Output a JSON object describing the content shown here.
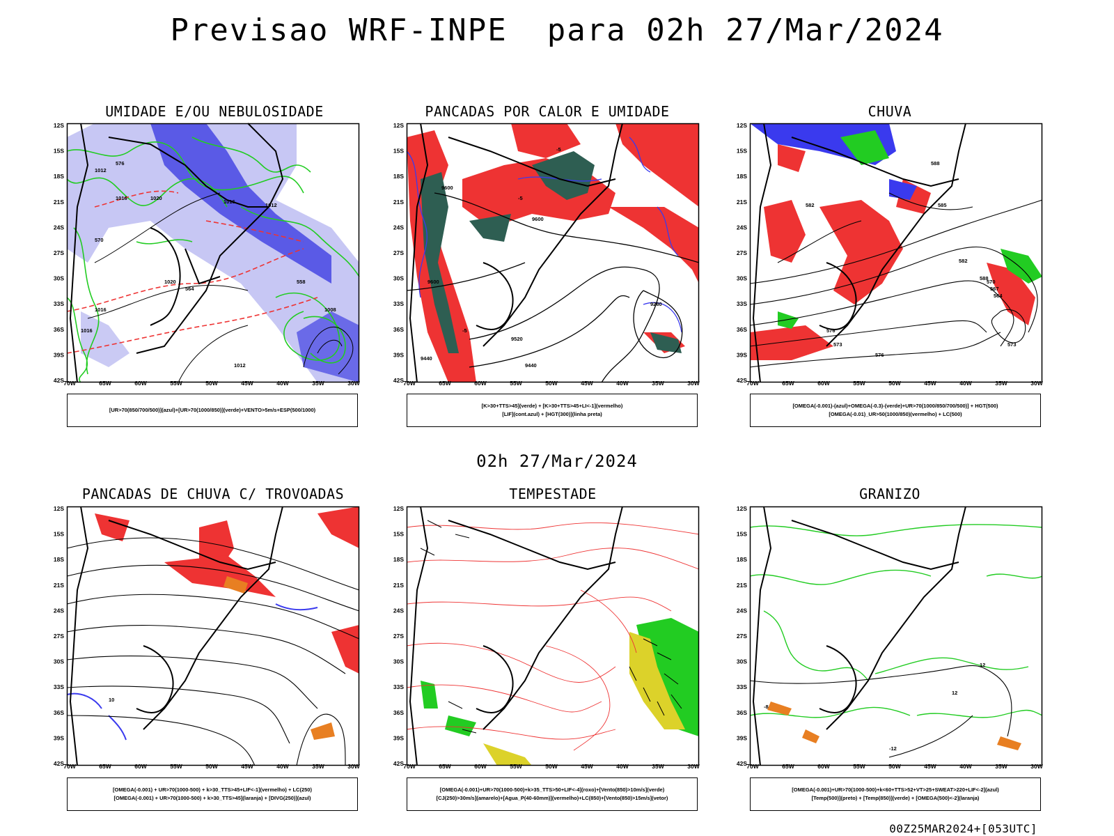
{
  "title": "Previsao WRF-INPE  para 02h 27/Mar/2024",
  "mid_time": "02h 27/Mar/2024",
  "footer": "00Z25MAR2024+[053UTC]",
  "axes": {
    "lat_labels": [
      "12S",
      "15S",
      "18S",
      "21S",
      "24S",
      "27S",
      "30S",
      "33S",
      "36S",
      "39S",
      "42S"
    ],
    "lon_labels": [
      "70W",
      "65W",
      "60W",
      "55W",
      "50W",
      "45W",
      "40W",
      "35W",
      "30W"
    ]
  },
  "colors": {
    "blue": "#3a3aee",
    "lavender": "#b4b4f0",
    "green": "#22cc22",
    "red": "#ee3333",
    "darkgreen": "#2e5e52",
    "orange": "#e87f22",
    "yellow": "#dcd22a",
    "black": "#000000"
  },
  "panels": [
    {
      "title": "UMIDADE E/OU NEBULOSIDADE",
      "legend": [
        "[UR>70(850/700/500)](azul)+[UR>70(1000/850)](verde)+VENTO>5m/s+ESP(500/1000)"
      ],
      "labels": [
        "1012",
        "1016",
        "1020",
        "1016",
        "1012",
        "1008",
        "1020",
        "1016",
        "1016",
        "1012",
        "576",
        "570",
        "564",
        "558"
      ]
    },
    {
      "title": "PANCADAS POR CALOR E UMIDADE",
      "legend": [
        "[K>30+TTS>45](verde) + [K>30+TTS>45+LI<-1](vermelho)",
        "[LIF](cont.azul) + [HGT(300)](linha preta)"
      ],
      "labels": [
        "9600",
        "9600",
        "9600",
        "9520",
        "9440",
        "9440",
        "9280",
        "-5",
        "-5",
        "-5"
      ]
    },
    {
      "title": "CHUVA",
      "legend": [
        "[OMEGA(-0.001)-(azul)+OMEGA(-0.3)-(verde)+UR>70(1000/850/700/500)] + HGT(500)",
        "[OMEGA(-0.01)_UR>50(1000/850)(vermelho) + LC(500)"
      ],
      "labels": [
        "582",
        "588",
        "588",
        "582",
        "576",
        "573",
        "570",
        "567",
        "564",
        "573",
        "576",
        "585"
      ]
    },
    {
      "title": "PANCADAS DE CHUVA C/ TROVOADAS",
      "legend": [
        "[OMEGA(-0.001) + UR>70(1000-500) + k>30_TTS>45+LIF<-1](vermelho) + LC(250)",
        "[OMEGA(-0.001) + UR>70(1000-500) + k>30_TTS>45](laranja) + [DIVG(250)](azul)"
      ],
      "labels": [
        "10"
      ]
    },
    {
      "title": "TEMPESTADE",
      "legend": [
        "[OMEGA(-0.001)+UR>70(1000-500)+k>35_TTS>50+LIF<-4](roxo)+[Vento(850)>10m/s](verde)",
        "[CJ(250)>30m/s](amarelo)+[Agua_P(40-60mm)](vermelho)+LC(850)+[Vento(850)>15m/s](vetor)"
      ],
      "labels": []
    },
    {
      "title": "GRANIZO",
      "legend": [
        "[OMEGA(-0.001)+UR>70(1000-500)+k<60+TTS>52+VT>25+SWEAT>220+LIF<-2](azul)",
        "[Temp(500)](preto) + [Temp(850)](verde) + [OMEGA(500)<-2](laranja)"
      ],
      "labels": [
        "12",
        "-12",
        "-8",
        "12"
      ]
    }
  ]
}
